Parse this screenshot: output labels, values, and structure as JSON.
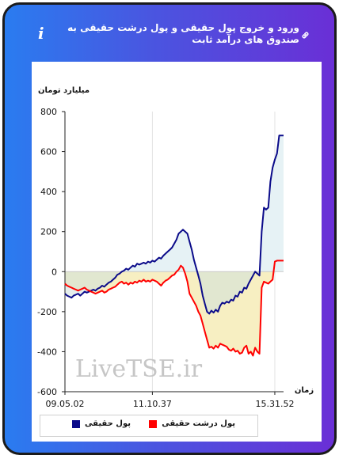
{
  "header": {
    "title": "ورود و خروج پول حقیقی و پول درشت حقیقی به صندوق های درآمد ثابت",
    "info_icon": "info-icon",
    "link_icon": "link-icon"
  },
  "colors": {
    "real_money": "#0b0b8a",
    "big_real_money": "#ff0000",
    "positive_fill": "#e6f2f5",
    "negative_fill": "#f7efc2",
    "overlap_fill": "#cfe0dc"
  },
  "watermark": "LiveTSE.ir",
  "chart_data": {
    "type": "line",
    "ylabel": "میلیارد تومان",
    "xlabel": "زمان",
    "ylim": [
      -600,
      800
    ],
    "yticks": [
      -600,
      -400,
      -200,
      0,
      200,
      400,
      600,
      800
    ],
    "xlim": [
      0,
      100
    ],
    "xticks": [
      {
        "x": 0,
        "label": "09.05.02"
      },
      {
        "x": 40,
        "label": "11.10.37"
      },
      {
        "x": 96,
        "label": "15.31.52"
      }
    ],
    "grid": "vertical",
    "legend_position": "bottom",
    "series": [
      {
        "name": "پول حقیقی",
        "color": "#0b0b8a",
        "points": [
          [
            0,
            -110
          ],
          [
            1,
            -120
          ],
          [
            2,
            -125
          ],
          [
            3,
            -130
          ],
          [
            4,
            -120
          ],
          [
            5,
            -115
          ],
          [
            6,
            -110
          ],
          [
            7,
            -120
          ],
          [
            8,
            -110
          ],
          [
            9,
            -100
          ],
          [
            10,
            -105
          ],
          [
            11,
            -100
          ],
          [
            12,
            -95
          ],
          [
            13,
            -90
          ],
          [
            14,
            -95
          ],
          [
            15,
            -85
          ],
          [
            16,
            -80
          ],
          [
            17,
            -70
          ],
          [
            18,
            -75
          ],
          [
            19,
            -65
          ],
          [
            20,
            -55
          ],
          [
            21,
            -50
          ],
          [
            22,
            -40
          ],
          [
            23,
            -30
          ],
          [
            24,
            -15
          ],
          [
            25,
            -10
          ],
          [
            26,
            0
          ],
          [
            27,
            5
          ],
          [
            28,
            15
          ],
          [
            29,
            10
          ],
          [
            30,
            20
          ],
          [
            31,
            30
          ],
          [
            32,
            25
          ],
          [
            33,
            40
          ],
          [
            34,
            35
          ],
          [
            35,
            40
          ],
          [
            36,
            45
          ],
          [
            37,
            40
          ],
          [
            38,
            50
          ],
          [
            39,
            45
          ],
          [
            40,
            55
          ],
          [
            41,
            50
          ],
          [
            42,
            60
          ],
          [
            43,
            70
          ],
          [
            44,
            65
          ],
          [
            45,
            80
          ],
          [
            46,
            90
          ],
          [
            47,
            100
          ],
          [
            48,
            110
          ],
          [
            49,
            120
          ],
          [
            50,
            140
          ],
          [
            51,
            160
          ],
          [
            52,
            190
          ],
          [
            53,
            200
          ],
          [
            54,
            210
          ],
          [
            55,
            200
          ],
          [
            56,
            190
          ],
          [
            57,
            150
          ],
          [
            58,
            110
          ],
          [
            59,
            60
          ],
          [
            60,
            20
          ],
          [
            61,
            -20
          ],
          [
            62,
            -60
          ],
          [
            63,
            -120
          ],
          [
            64,
            -160
          ],
          [
            65,
            -200
          ],
          [
            66,
            -210
          ],
          [
            67,
            -195
          ],
          [
            68,
            -205
          ],
          [
            69,
            -190
          ],
          [
            70,
            -200
          ],
          [
            71,
            -170
          ],
          [
            72,
            -155
          ],
          [
            73,
            -160
          ],
          [
            74,
            -150
          ],
          [
            75,
            -155
          ],
          [
            76,
            -140
          ],
          [
            77,
            -145
          ],
          [
            78,
            -120
          ],
          [
            79,
            -125
          ],
          [
            80,
            -100
          ],
          [
            81,
            -105
          ],
          [
            82,
            -80
          ],
          [
            83,
            -85
          ],
          [
            84,
            -60
          ],
          [
            85,
            -40
          ],
          [
            86,
            -20
          ],
          [
            87,
            0
          ],
          [
            88,
            -10
          ],
          [
            89,
            -20
          ],
          [
            90,
            200
          ],
          [
            91,
            320
          ],
          [
            92,
            310
          ],
          [
            93,
            320
          ],
          [
            94,
            450
          ],
          [
            95,
            520
          ],
          [
            96,
            560
          ],
          [
            97,
            590
          ],
          [
            98,
            680
          ],
          [
            99,
            680
          ],
          [
            100,
            680
          ]
        ]
      },
      {
        "name": "پول درشت حقیقی",
        "color": "#ff0000",
        "points": [
          [
            0,
            -60
          ],
          [
            1,
            -70
          ],
          [
            2,
            -75
          ],
          [
            3,
            -80
          ],
          [
            4,
            -85
          ],
          [
            5,
            -90
          ],
          [
            6,
            -95
          ],
          [
            7,
            -90
          ],
          [
            8,
            -85
          ],
          [
            9,
            -80
          ],
          [
            10,
            -90
          ],
          [
            11,
            -95
          ],
          [
            12,
            -100
          ],
          [
            13,
            -105
          ],
          [
            14,
            -110
          ],
          [
            15,
            -105
          ],
          [
            16,
            -100
          ],
          [
            17,
            -95
          ],
          [
            18,
            -105
          ],
          [
            19,
            -100
          ],
          [
            20,
            -90
          ],
          [
            21,
            -85
          ],
          [
            22,
            -80
          ],
          [
            23,
            -75
          ],
          [
            24,
            -65
          ],
          [
            25,
            -55
          ],
          [
            26,
            -50
          ],
          [
            27,
            -60
          ],
          [
            28,
            -55
          ],
          [
            29,
            -65
          ],
          [
            30,
            -55
          ],
          [
            31,
            -60
          ],
          [
            32,
            -50
          ],
          [
            33,
            -55
          ],
          [
            34,
            -45
          ],
          [
            35,
            -50
          ],
          [
            36,
            -40
          ],
          [
            37,
            -50
          ],
          [
            38,
            -45
          ],
          [
            39,
            -50
          ],
          [
            40,
            -40
          ],
          [
            41,
            -45
          ],
          [
            42,
            -50
          ],
          [
            43,
            -60
          ],
          [
            44,
            -70
          ],
          [
            45,
            -55
          ],
          [
            46,
            -45
          ],
          [
            47,
            -40
          ],
          [
            48,
            -30
          ],
          [
            49,
            -20
          ],
          [
            50,
            -15
          ],
          [
            51,
            0
          ],
          [
            52,
            10
          ],
          [
            53,
            30
          ],
          [
            54,
            20
          ],
          [
            55,
            -10
          ],
          [
            56,
            -50
          ],
          [
            57,
            -110
          ],
          [
            58,
            -130
          ],
          [
            59,
            -150
          ],
          [
            60,
            -170
          ],
          [
            61,
            -200
          ],
          [
            62,
            -220
          ],
          [
            63,
            -260
          ],
          [
            64,
            -300
          ],
          [
            65,
            -340
          ],
          [
            66,
            -380
          ],
          [
            67,
            -375
          ],
          [
            68,
            -385
          ],
          [
            69,
            -370
          ],
          [
            70,
            -380
          ],
          [
            71,
            -360
          ],
          [
            72,
            -365
          ],
          [
            73,
            -370
          ],
          [
            74,
            -375
          ],
          [
            75,
            -390
          ],
          [
            76,
            -395
          ],
          [
            77,
            -385
          ],
          [
            78,
            -400
          ],
          [
            79,
            -395
          ],
          [
            80,
            -410
          ],
          [
            81,
            -405
          ],
          [
            82,
            -380
          ],
          [
            83,
            -370
          ],
          [
            84,
            -410
          ],
          [
            85,
            -400
          ],
          [
            86,
            -420
          ],
          [
            87,
            -380
          ],
          [
            88,
            -400
          ],
          [
            89,
            -410
          ],
          [
            90,
            -80
          ],
          [
            91,
            -50
          ],
          [
            92,
            -55
          ],
          [
            93,
            -60
          ],
          [
            94,
            -50
          ],
          [
            95,
            -40
          ],
          [
            96,
            50
          ],
          [
            97,
            55
          ],
          [
            98,
            55
          ],
          [
            99,
            55
          ],
          [
            100,
            55
          ]
        ]
      }
    ]
  }
}
